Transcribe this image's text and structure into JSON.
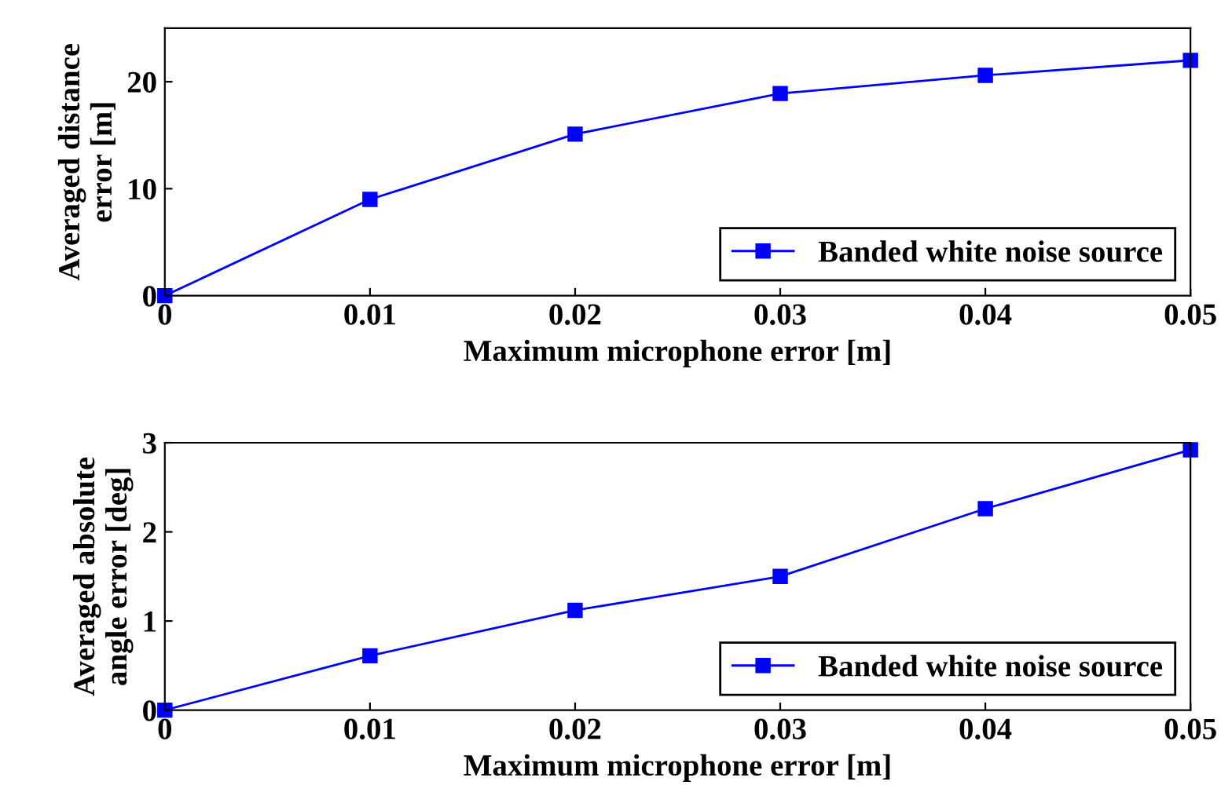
{
  "chart_data": [
    {
      "type": "line",
      "xlabel": "Maximum microphone error [m]",
      "ylabel": "Averaged distance\nerror [m]",
      "x": [
        0,
        0.01,
        0.02,
        0.03,
        0.04,
        0.05
      ],
      "series": [
        {
          "name": "Banded white noise source",
          "color": "#0000ff",
          "values": [
            0,
            9.0,
            15.1,
            18.9,
            20.6,
            22.0
          ]
        }
      ],
      "xlim": [
        0,
        0.05
      ],
      "xticks": [
        0,
        0.01,
        0.02,
        0.03,
        0.04,
        0.05
      ],
      "ylim": [
        0,
        25
      ],
      "yticks": [
        0,
        10,
        20
      ],
      "marker": "square",
      "line_style": "solid",
      "legend": "bottom right",
      "grid": false
    },
    {
      "type": "line",
      "xlabel": "Maximum microphone error [m]",
      "ylabel": "Averaged absolute\nangle error [deg]",
      "x": [
        0,
        0.01,
        0.02,
        0.03,
        0.04,
        0.05
      ],
      "series": [
        {
          "name": "Banded white noise source",
          "color": "#0000ff",
          "values": [
            0,
            0.61,
            1.12,
            1.5,
            2.26,
            2.92
          ]
        }
      ],
      "xlim": [
        0,
        0.05
      ],
      "xticks": [
        0,
        0.01,
        0.02,
        0.03,
        0.04,
        0.05
      ],
      "ylim": [
        0,
        3
      ],
      "yticks": [
        0,
        1,
        2,
        3
      ],
      "marker": "square",
      "line_style": "solid",
      "legend": "bottom right",
      "grid": false
    }
  ]
}
